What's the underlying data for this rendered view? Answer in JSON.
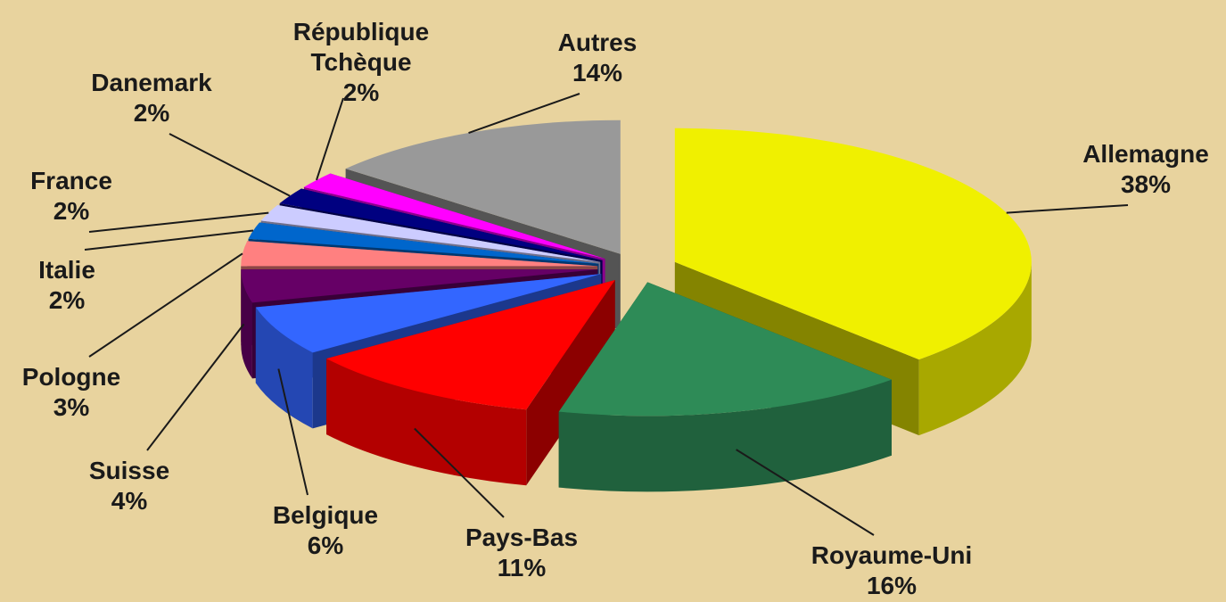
{
  "chart_data": {
    "type": "pie",
    "categories": [
      "Allemagne",
      "Royaume-Uni",
      "Pays-Bas",
      "Belgique",
      "Suisse",
      "Pologne",
      "Italie",
      "France",
      "Danemark",
      "République Tchèque",
      "Autres"
    ],
    "values": [
      38,
      16,
      11,
      6,
      4,
      3,
      2,
      2,
      2,
      2,
      14
    ],
    "value_labels": [
      "38%",
      "16%",
      "11%",
      "6%",
      "4%",
      "3%",
      "2%",
      "2%",
      "2%",
      "2%",
      "14%"
    ],
    "colors": [
      "#f0f000",
      "#2e8b57",
      "#ff0000",
      "#3366ff",
      "#660066",
      "#ff8080",
      "#0066cc",
      "#ccccff",
      "#000080",
      "#ff00ff",
      "#999999"
    ]
  }
}
